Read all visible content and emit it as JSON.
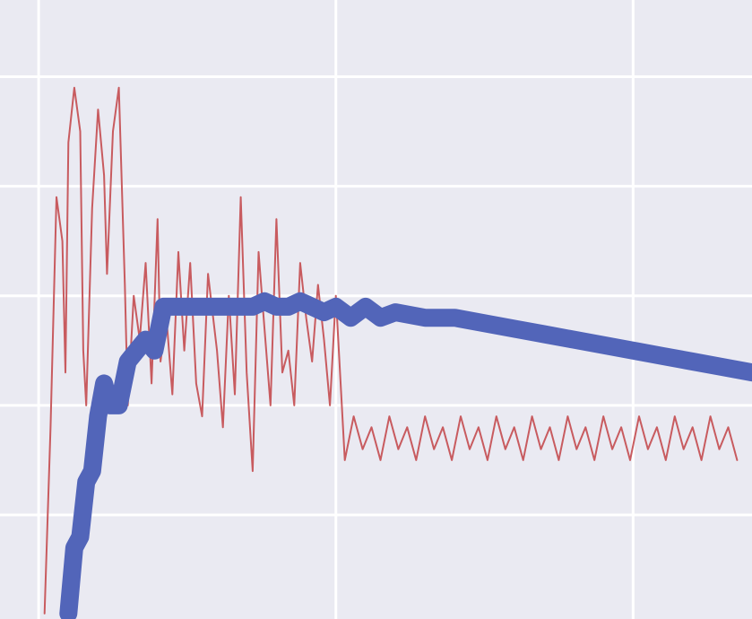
{
  "chart_data": {
    "type": "line",
    "title": "",
    "xlabel": "",
    "ylabel": "",
    "grid": true,
    "xlim": [
      -0.13,
      2.4
    ],
    "ylim": [
      -0.95,
      4.7
    ],
    "x_gridlines": [
      0,
      1,
      2
    ],
    "y_gridlines": [
      0,
      1,
      2,
      3,
      4
    ],
    "series": [
      {
        "style": "thin",
        "color": "#c44e52",
        "x": [
          0.02,
          0.04,
          0.06,
          0.08,
          0.09,
          0.1,
          0.12,
          0.14,
          0.15,
          0.16,
          0.18,
          0.2,
          0.22,
          0.23,
          0.25,
          0.27,
          0.29,
          0.3,
          0.32,
          0.34,
          0.36,
          0.38,
          0.4,
          0.41,
          0.43,
          0.45,
          0.47,
          0.49,
          0.51,
          0.53,
          0.55,
          0.57,
          0.6,
          0.62,
          0.64,
          0.66,
          0.68,
          0.7,
          0.72,
          0.74,
          0.76,
          0.78,
          0.8,
          0.82,
          0.84,
          0.86,
          0.88,
          0.9,
          0.92,
          0.94,
          0.96,
          0.98,
          1.0,
          1.03,
          1.06,
          1.09,
          1.12,
          1.15,
          1.18,
          1.21,
          1.24,
          1.27,
          1.3,
          1.33,
          1.36,
          1.39,
          1.42,
          1.45,
          1.48,
          1.51,
          1.54,
          1.57,
          1.6,
          1.63,
          1.66,
          1.69,
          1.72,
          1.75,
          1.78,
          1.81,
          1.84,
          1.87,
          1.9,
          1.93,
          1.96,
          1.99,
          2.02,
          2.05,
          2.08,
          2.11,
          2.14,
          2.17,
          2.2,
          2.23,
          2.26,
          2.29,
          2.32,
          2.35
        ],
        "y": [
          -0.9,
          0.8,
          2.9,
          2.5,
          1.3,
          3.4,
          3.9,
          3.5,
          1.5,
          1.0,
          2.8,
          3.7,
          3.1,
          2.2,
          3.5,
          3.9,
          2.1,
          1.0,
          2.0,
          1.6,
          2.3,
          1.2,
          2.7,
          1.4,
          1.8,
          1.1,
          2.4,
          1.5,
          2.3,
          1.2,
          0.9,
          2.2,
          1.5,
          0.8,
          2.0,
          1.1,
          2.9,
          1.3,
          0.4,
          2.4,
          1.7,
          1.0,
          2.7,
          1.3,
          1.5,
          1.0,
          2.3,
          1.8,
          1.4,
          2.1,
          1.6,
          1.0,
          2.0,
          0.5,
          0.9,
          0.6,
          0.8,
          0.5,
          0.9,
          0.6,
          0.8,
          0.5,
          0.9,
          0.6,
          0.8,
          0.5,
          0.9,
          0.6,
          0.8,
          0.5,
          0.9,
          0.6,
          0.8,
          0.5,
          0.9,
          0.6,
          0.8,
          0.5,
          0.9,
          0.6,
          0.8,
          0.5,
          0.9,
          0.6,
          0.8,
          0.5,
          0.9,
          0.6,
          0.8,
          0.5,
          0.9,
          0.6,
          0.8,
          0.5,
          0.9,
          0.6,
          0.8,
          0.5
        ]
      },
      {
        "style": "thick",
        "color": "#5265b9",
        "x": [
          0.1,
          0.12,
          0.14,
          0.16,
          0.18,
          0.2,
          0.22,
          0.24,
          0.27,
          0.3,
          0.33,
          0.36,
          0.39,
          0.42,
          0.45,
          0.48,
          0.52,
          0.56,
          0.6,
          0.64,
          0.68,
          0.72,
          0.76,
          0.8,
          0.84,
          0.88,
          0.92,
          0.96,
          1.0,
          1.05,
          1.1,
          1.15,
          1.2,
          1.3,
          1.4,
          1.5,
          1.6,
          1.7,
          1.8,
          1.9,
          2.0,
          2.1,
          2.2,
          2.3,
          2.4
        ],
        "y": [
          -0.9,
          -0.3,
          -0.2,
          0.3,
          0.4,
          0.9,
          1.2,
          1.0,
          1.0,
          1.4,
          1.5,
          1.6,
          1.5,
          1.9,
          1.9,
          1.9,
          1.9,
          1.9,
          1.9,
          1.9,
          1.9,
          1.9,
          1.95,
          1.9,
          1.9,
          1.95,
          1.9,
          1.85,
          1.9,
          1.8,
          1.9,
          1.8,
          1.85,
          1.8,
          1.8,
          1.75,
          1.7,
          1.65,
          1.6,
          1.55,
          1.5,
          1.45,
          1.4,
          1.35,
          1.3
        ]
      }
    ]
  }
}
